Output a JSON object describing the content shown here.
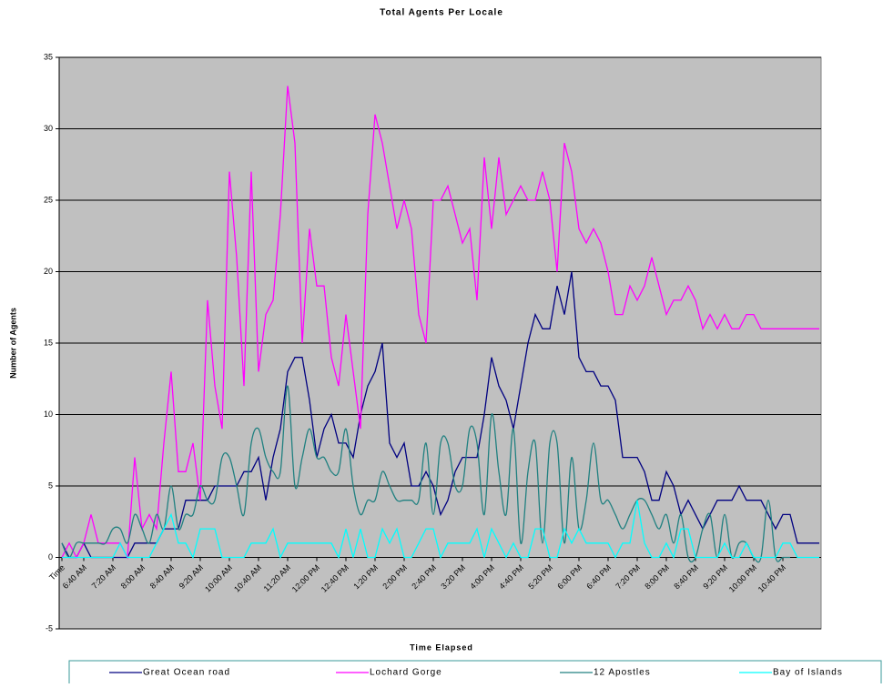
{
  "chart_data": {
    "type": "line",
    "title": "Total Agents Per Locale",
    "x_label": "Time Elapsed",
    "y_label": "Number of Agents",
    "categories": [
      "Time",
      null,
      null,
      "6:40 AM",
      null,
      null,
      null,
      "7:20 AM",
      null,
      null,
      null,
      "8:00 AM",
      null,
      null,
      null,
      "8:40 AM",
      null,
      null,
      null,
      "9:20 AM",
      null,
      null,
      null,
      "10:00 AM",
      null,
      null,
      null,
      "10:40 AM",
      null,
      null,
      null,
      "11:20 AM",
      null,
      null,
      null,
      "12:00 PM",
      null,
      null,
      null,
      "12:40 PM",
      null,
      null,
      null,
      "1:20 PM",
      null,
      null,
      null,
      "2:00 PM",
      null,
      null,
      null,
      "2:40 PM",
      null,
      null,
      null,
      "3:20 PM",
      null,
      null,
      null,
      "4:00 PM",
      null,
      null,
      null,
      "4:40 PM",
      null,
      null,
      null,
      "5:20 PM",
      null,
      null,
      null,
      "6:00 PM",
      null,
      null,
      null,
      "6:40 PM",
      null,
      null,
      null,
      "7:20 PM",
      null,
      null,
      null,
      "8:00 PM",
      null,
      null,
      null,
      "8:40 PM",
      null,
      null,
      null,
      "9:20 PM",
      null,
      null,
      null,
      "10:00 PM",
      null,
      null,
      null,
      "10:40 PM",
      null,
      null,
      null,
      null,
      null
    ],
    "ylim": [
      -5,
      35
    ],
    "yticks": [
      -5,
      0,
      5,
      10,
      15,
      20,
      25,
      30,
      35
    ],
    "grid": true,
    "legend": "bottom",
    "series": [
      {
        "name": "Great Ocean road",
        "color": "#000080",
        "smooth": false,
        "values": [
          1,
          0,
          0,
          1,
          0,
          0,
          0,
          0,
          0,
          0,
          1,
          1,
          1,
          1,
          2,
          2,
          2,
          4,
          4,
          4,
          4,
          5,
          5,
          5,
          5,
          6,
          6,
          7,
          4,
          7,
          9,
          13,
          14,
          14,
          11,
          7,
          9,
          10,
          8,
          8,
          7,
          10,
          12,
          13,
          15,
          8,
          7,
          8,
          5,
          5,
          6,
          5,
          3,
          4,
          6,
          7,
          7,
          7,
          10,
          14,
          12,
          11,
          9,
          12,
          15,
          17,
          16,
          16,
          19,
          17,
          20,
          14,
          13,
          13,
          12,
          12,
          11,
          7,
          7,
          7,
          6,
          4,
          4,
          6,
          5,
          3,
          4,
          3,
          2,
          3,
          4,
          4,
          4,
          5,
          4,
          4,
          4,
          3,
          2,
          3,
          3,
          1,
          1,
          1,
          1
        ]
      },
      {
        "name": "Lochard Gorge",
        "color": "#ff00ff",
        "smooth": false,
        "values": [
          0,
          1,
          0,
          1,
          3,
          1,
          1,
          1,
          1,
          0,
          7,
          2,
          3,
          2,
          8,
          13,
          6,
          6,
          8,
          4,
          18,
          12,
          9,
          27,
          21,
          12,
          27,
          13,
          17,
          18,
          24,
          33,
          29,
          15,
          23,
          19,
          19,
          14,
          12,
          17,
          13,
          9,
          24,
          31,
          29,
          26,
          23,
          25,
          23,
          17,
          15,
          25,
          25,
          26,
          24,
          22,
          23,
          18,
          28,
          23,
          28,
          24,
          25,
          26,
          25,
          25,
          27,
          25,
          20,
          29,
          27,
          23,
          22,
          23,
          22,
          20,
          17,
          17,
          19,
          18,
          19,
          21,
          19,
          17,
          18,
          18,
          19,
          18,
          16,
          17,
          16,
          17,
          16,
          16,
          17,
          17,
          16,
          16,
          16,
          16,
          16,
          16,
          16,
          16,
          16
        ]
      },
      {
        "name": "12 Apostles",
        "color": "#208080",
        "smooth": true,
        "values": [
          1,
          0,
          1,
          1,
          1,
          1,
          1,
          2,
          2,
          1,
          3,
          2,
          1,
          3,
          2,
          5,
          2,
          3,
          3,
          5,
          4,
          4,
          7,
          7,
          5,
          3,
          8,
          9,
          7,
          6,
          6,
          12,
          5,
          7,
          9,
          7,
          7,
          6,
          6,
          9,
          5,
          3,
          4,
          4,
          6,
          5,
          4,
          4,
          4,
          4,
          8,
          3,
          8,
          8,
          5,
          5,
          9,
          8,
          3,
          10,
          6,
          3,
          9,
          1,
          6,
          8,
          1,
          8,
          8,
          1,
          7,
          2,
          4,
          8,
          4,
          4,
          3,
          2,
          3,
          4,
          4,
          3,
          2,
          3,
          1,
          3,
          0,
          0,
          2,
          3,
          0,
          3,
          0,
          1,
          1,
          0,
          0,
          4,
          0,
          0,
          0,
          null,
          null,
          null,
          null
        ]
      },
      {
        "name": "Bay of Islands",
        "color": "#00ffff",
        "smooth": false,
        "values": [
          0,
          0,
          0,
          0,
          0,
          0,
          0,
          0,
          1,
          0,
          0,
          0,
          0,
          1,
          2,
          3,
          1,
          1,
          0,
          2,
          2,
          2,
          0,
          0,
          0,
          0,
          1,
          1,
          1,
          2,
          0,
          1,
          1,
          1,
          1,
          1,
          1,
          1,
          0,
          2,
          0,
          2,
          0,
          0,
          2,
          1,
          2,
          0,
          0,
          1,
          2,
          2,
          0,
          1,
          1,
          1,
          1,
          2,
          0,
          2,
          1,
          0,
          1,
          0,
          0,
          2,
          2,
          0,
          0,
          2,
          1,
          2,
          1,
          1,
          1,
          1,
          0,
          1,
          1,
          4,
          1,
          0,
          0,
          1,
          0,
          2,
          2,
          0,
          0,
          0,
          0,
          1,
          0,
          0,
          1,
          0,
          0,
          0,
          0,
          1,
          1,
          0,
          0,
          0,
          0
        ]
      }
    ]
  }
}
